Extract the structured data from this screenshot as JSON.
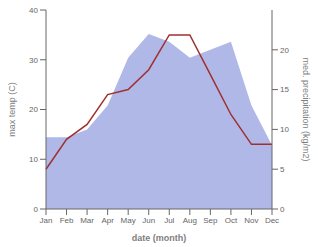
{
  "chart_data": {
    "type": "line",
    "categories": [
      "Jan",
      "Feb",
      "Mar",
      "Apr",
      "May",
      "Jun",
      "Jul",
      "Aug",
      "Sep",
      "Oct",
      "Nov",
      "Dec"
    ],
    "series": [
      {
        "type": "area",
        "axis": "y2",
        "color": "#b0b8e8",
        "values": [
          9,
          9,
          10,
          13,
          19,
          22,
          21,
          19,
          20,
          21,
          13,
          8
        ]
      },
      {
        "type": "line",
        "axis": "y",
        "color": "#a03030",
        "values": [
          8,
          14,
          17,
          23,
          24,
          28,
          35,
          35,
          27,
          19,
          13,
          13
        ]
      }
    ],
    "xlabel": "date (month)",
    "ylabel": "max temp (C)",
    "y2label": "med. precipitation (kg/m2)",
    "ylim": [
      0,
      40
    ],
    "yticks": [
      0,
      10,
      20,
      30,
      40
    ],
    "y2lim": [
      0,
      25
    ],
    "y2ticks": [
      0,
      5,
      10,
      15,
      20
    ],
    "grid": false
  }
}
